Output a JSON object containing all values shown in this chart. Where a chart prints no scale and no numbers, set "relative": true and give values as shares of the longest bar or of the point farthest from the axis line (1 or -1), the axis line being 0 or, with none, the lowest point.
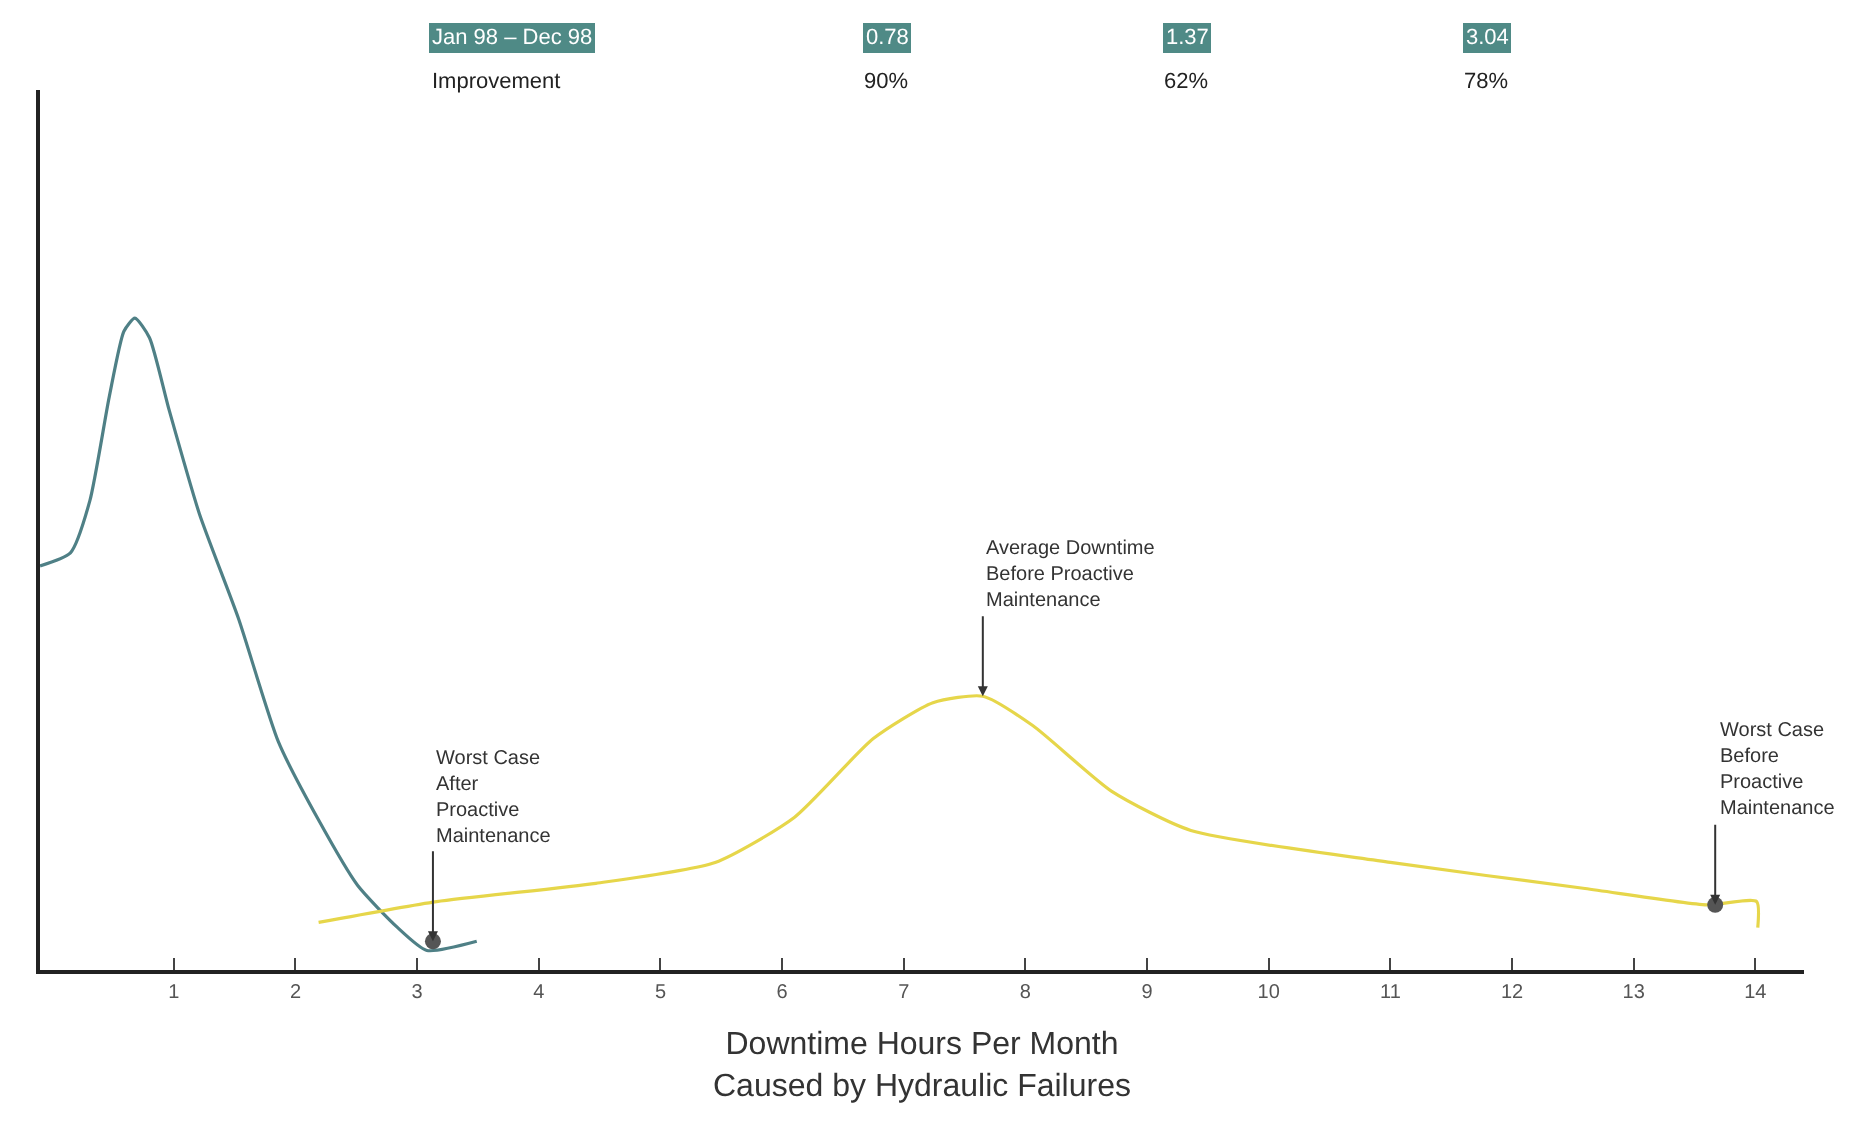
{
  "chart_data": {
    "type": "line",
    "relative": true,
    "xlabel": "Downtime Hours Per Month\nCaused by Hydraulic Failures",
    "xlim": [
      -0.1,
      14.4
    ],
    "xticks": [
      1,
      2,
      3,
      4,
      5,
      6,
      7,
      8,
      9,
      10,
      11,
      12,
      13,
      14
    ],
    "marker": "none",
    "line_style": "solid",
    "series": [
      {
        "color": "#4f8086",
        "x": [
          -0.1,
          0.15,
          0.31,
          0.47,
          0.59,
          0.68,
          0.8,
          0.96,
          1.21,
          1.53,
          1.86,
          2.19,
          2.51,
          2.84,
          3.08,
          3.49
        ],
        "values": [
          0.62,
          0.64,
          0.72,
          0.88,
          0.98,
          1.0,
          0.97,
          0.86,
          0.7,
          0.54,
          0.35,
          0.23,
          0.13,
          0.065,
          0.03,
          0.044
        ]
      },
      {
        "color": "#e6d64a",
        "x": [
          2.19,
          3.16,
          4.47,
          5.45,
          6.1,
          6.75,
          7.24,
          7.65,
          8.06,
          8.71,
          9.36,
          11.0,
          12.6,
          13.6,
          14.01,
          14.02
        ],
        "values": [
          0.073,
          0.105,
          0.133,
          0.165,
          0.234,
          0.355,
          0.41,
          0.42,
          0.375,
          0.274,
          0.214,
          0.165,
          0.125,
          0.1,
          0.105,
          0.065
        ]
      },
      {
        "type": "scatter",
        "marker": "circle",
        "color": "#555555",
        "x": [
          3.13,
          13.67
        ],
        "values": [
          0.044,
          0.1
        ]
      }
    ],
    "annotations": [
      {
        "text": "Worst Case\nAfter\nProactive\nMaintenance",
        "x": 3.13,
        "y": 0.044
      },
      {
        "text": "Average Downtime\nBefore Proactive\nMaintenance",
        "x": 7.65,
        "y": 0.42
      },
      {
        "text": "Worst Case\nBefore\nProactive\nMaintenance",
        "x": 13.67,
        "y": 0.1
      },
      "Jan 98 – Dec 98",
      "0.78",
      "1.37",
      "3.04",
      "Improvement",
      "90%",
      "62%",
      "78%"
    ]
  }
}
